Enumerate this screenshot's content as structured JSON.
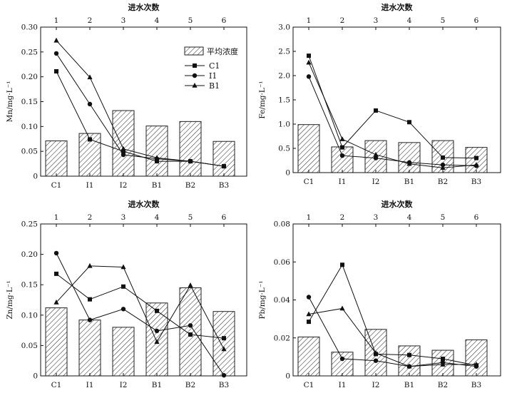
{
  "chart_data": [
    {
      "type": "bar",
      "top_axis_title": "进水次数",
      "top_ticks": [
        "1",
        "2",
        "3",
        "4",
        "5",
        "6"
      ],
      "categories": [
        "C1",
        "I1",
        "I2",
        "B1",
        "B2",
        "B3"
      ],
      "ylabel": "Mn/mg·L⁻¹",
      "ylim": [
        0,
        0.3
      ],
      "yticks": [
        "0",
        "0.05",
        "0.10",
        "0.15",
        "0.20",
        "0.25",
        "0.30"
      ],
      "bars": {
        "name": "平均浓度",
        "values": [
          0.071,
          0.086,
          0.132,
          0.101,
          0.11,
          0.07
        ]
      },
      "series": [
        {
          "name": "C1",
          "marker": "square",
          "values": [
            0.211,
            0.074,
            0.05,
            0.03,
            0.03,
            0.02
          ]
        },
        {
          "name": "I1",
          "marker": "circle",
          "values": [
            0.247,
            0.145,
            0.043,
            0.035,
            0.03,
            0.02
          ]
        },
        {
          "name": "B1",
          "marker": "triangle",
          "values": [
            0.273,
            0.199,
            0.055,
            0.037,
            0.03,
            0.02
          ]
        }
      ],
      "legend": "top-right"
    },
    {
      "type": "bar",
      "top_axis_title": "进水次数",
      "top_ticks": [
        "1",
        "2",
        "3",
        "4",
        "5",
        "6"
      ],
      "categories": [
        "C1",
        "I1",
        "I2",
        "B1",
        "B2",
        "B3"
      ],
      "ylabel": "Fe/mg·L⁻¹",
      "ylim": [
        0,
        3.0
      ],
      "yticks": [
        "0",
        "0.5",
        "1.0",
        "1.5",
        "2.0",
        "2.5",
        "3.0"
      ],
      "bars": {
        "name": "平均浓度",
        "values": [
          0.99,
          0.53,
          0.66,
          0.62,
          0.66,
          0.52
        ]
      },
      "series": [
        {
          "name": "C1",
          "marker": "square",
          "values": [
            2.41,
            0.52,
            1.28,
            1.04,
            0.31,
            0.3
          ]
        },
        {
          "name": "I1",
          "marker": "circle",
          "values": [
            1.98,
            0.35,
            0.3,
            0.21,
            0.16,
            0.14
          ]
        },
        {
          "name": "B1",
          "marker": "triangle",
          "values": [
            2.27,
            0.69,
            0.37,
            0.18,
            0.1,
            0.16
          ]
        }
      ]
    },
    {
      "type": "bar",
      "top_axis_title": "进水次数",
      "top_ticks": [
        "1",
        "2",
        "3",
        "4",
        "5",
        "6"
      ],
      "categories": [
        "C1",
        "I1",
        "I2",
        "B1",
        "B2",
        "B3"
      ],
      "ylabel": "Zn/mg·L⁻¹",
      "ylim": [
        0,
        0.25
      ],
      "yticks": [
        "0",
        "0.05",
        "0.10",
        "0.15",
        "0.20",
        "0.25"
      ],
      "bars": {
        "name": "平均浓度",
        "values": [
          0.112,
          0.092,
          0.08,
          0.12,
          0.145,
          0.106
        ]
      },
      "series": [
        {
          "name": "C1",
          "marker": "square",
          "values": [
            0.168,
            0.126,
            0.147,
            0.107,
            0.068,
            0.062
          ]
        },
        {
          "name": "I1",
          "marker": "circle",
          "values": [
            0.202,
            0.092,
            0.11,
            0.074,
            0.083,
            0.001
          ]
        },
        {
          "name": "B1",
          "marker": "triangle",
          "values": [
            0.121,
            0.181,
            0.179,
            0.056,
            0.149,
            0.044
          ]
        }
      ]
    },
    {
      "type": "bar",
      "top_axis_title": "进水次数",
      "top_ticks": [
        "1",
        "2",
        "3",
        "4",
        "5",
        "6"
      ],
      "categories": [
        "C1",
        "I1",
        "I2",
        "B1",
        "B2",
        "B3"
      ],
      "ylabel": "Pb/mg·L⁻¹",
      "ylim": [
        0,
        0.08
      ],
      "yticks": [
        "0",
        "0.02",
        "0.04",
        "0.06",
        "0.08"
      ],
      "bars": {
        "name": "平均浓度",
        "values": [
          0.0205,
          0.0125,
          0.0245,
          0.0158,
          0.0135,
          0.019
        ]
      },
      "series": [
        {
          "name": "C1",
          "marker": "square",
          "values": [
            0.0285,
            0.0585,
            0.0115,
            0.011,
            0.009,
            0.0055
          ]
        },
        {
          "name": "I1",
          "marker": "circle",
          "values": [
            0.0415,
            0.009,
            0.008,
            0.005,
            0.007,
            0.005
          ]
        },
        {
          "name": "B1",
          "marker": "triangle",
          "values": [
            0.0325,
            0.0355,
            0.012,
            0.005,
            0.006,
            0.006
          ]
        }
      ]
    }
  ]
}
